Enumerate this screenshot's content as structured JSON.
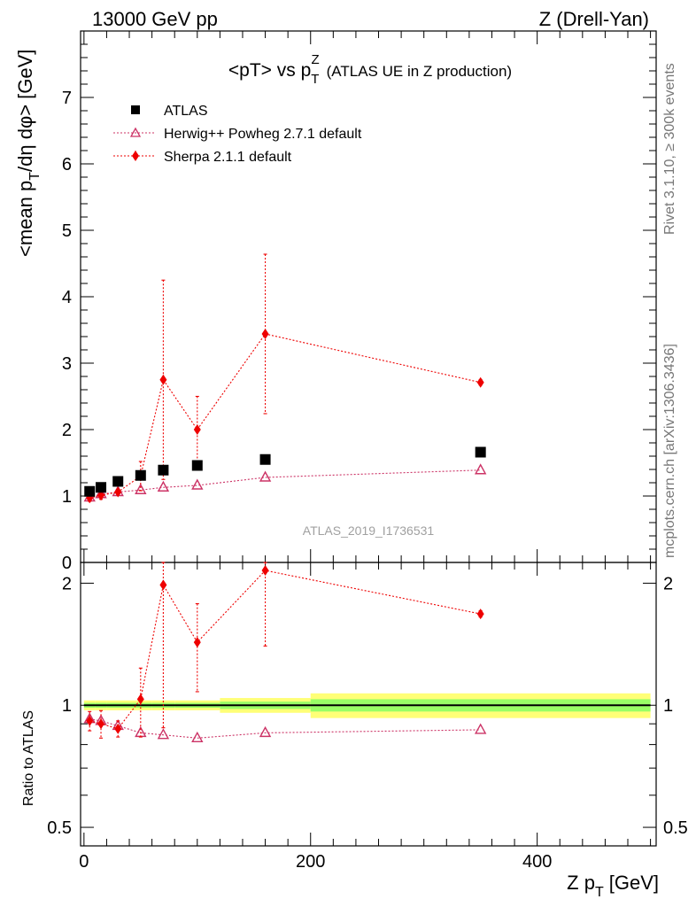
{
  "header": {
    "left": "13000 GeV pp",
    "right": "Z (Drell-Yan)"
  },
  "side_labels": {
    "rivet": "Rivet 3.1.10, ≥ 300k events",
    "mcplots": "mcplots.cern.ch [arXiv:1306.3436]"
  },
  "chart_data": {
    "type": "scatter",
    "title": "<pT> vs p_T^Z (ATLAS UE in Z production)",
    "title_main": "<pT> vs p",
    "title_sub": "T",
    "title_sup": "Z",
    "title_rest": "(ATLAS UE in Z production)",
    "watermark": "ATLAS_2019_I1736531",
    "xlabel": "Z p_T [GeV]",
    "xlabel_main": "Z p",
    "xlabel_sub": "T",
    "xlabel_rest": "[GeV]",
    "ylabel": "<mean p_T/dη dφ> [GeV]",
    "ylabel_main": "<mean p",
    "ylabel_sub": "T",
    "ylabel_rest": "/dη dφ> [GeV]",
    "ratio_ylabel": "Ratio to ATLAS",
    "xlim": [
      -3,
      505
    ],
    "ylim": [
      0,
      8
    ],
    "ratio_ylim": [
      0.45,
      2.25
    ],
    "x_ticks": [
      0,
      200,
      400
    ],
    "y_ticks": [
      0,
      1,
      2,
      3,
      4,
      5,
      6,
      7
    ],
    "ratio_ticks": [
      0.5,
      1,
      2
    ],
    "legend": [
      "ATLAS",
      "Herwig++ Powheg 2.7.1 default",
      "Sherpa 2.1.1 default"
    ],
    "legend_position": "top-left",
    "series": [
      {
        "name": "ATLAS",
        "marker": "square",
        "color": "#000000",
        "x": [
          5,
          15,
          30,
          50,
          70,
          100,
          160,
          350
        ],
        "y": [
          1.07,
          1.13,
          1.22,
          1.31,
          1.39,
          1.46,
          1.55,
          1.66
        ],
        "band_edges": [
          0,
          10,
          20,
          40,
          60,
          80,
          120,
          200,
          500
        ],
        "band_rel_err": [
          0.02,
          0.02,
          0.02,
          0.02,
          0.02,
          0.02,
          0.03,
          0.05
        ]
      },
      {
        "name": "Herwig++ Powheg 2.7.1 default",
        "marker": "open-triangle",
        "color": "#cc3366",
        "x": [
          5,
          15,
          30,
          50,
          70,
          100,
          160,
          350
        ],
        "y": [
          0.98,
          1.03,
          1.06,
          1.09,
          1.13,
          1.16,
          1.28,
          1.39
        ],
        "ratio": [
          0.925,
          0.915,
          0.89,
          0.855,
          0.845,
          0.83,
          0.855,
          0.87
        ]
      },
      {
        "name": "Sherpa 2.1.1 default",
        "marker": "filled-diamond",
        "color": "#ee0000",
        "x": [
          5,
          15,
          30,
          50,
          70,
          100,
          160,
          350
        ],
        "y": [
          0.97,
          1.01,
          1.06,
          1.3,
          2.75,
          2.0,
          3.44,
          2.71
        ],
        "yerr": [
          0.05,
          0.06,
          0.04,
          0.22,
          1.5,
          0.5,
          1.2,
          0.04
        ],
        "ratio": [
          0.915,
          0.9,
          0.875,
          1.035,
          1.98,
          1.43,
          2.15,
          1.68
        ],
        "ratio_err": [
          0.05,
          0.07,
          0.04,
          0.2,
          1.1,
          0.35,
          0.75,
          0.03
        ]
      }
    ]
  }
}
